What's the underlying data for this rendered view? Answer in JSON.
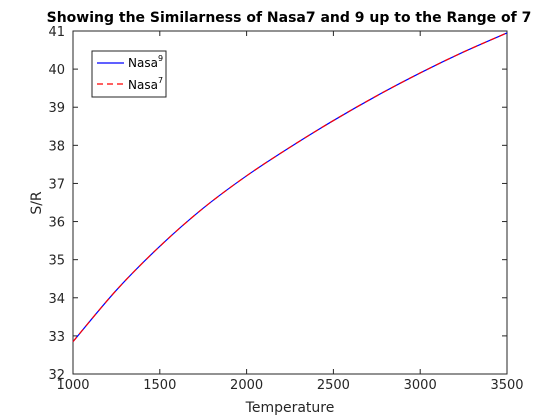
{
  "chart_data": {
    "type": "line",
    "title": "Showing the Similarness of Nasa7 and 9 up to the Range of 7",
    "xlabel": "Temperature",
    "ylabel": "S/R",
    "xlim": [
      1000,
      3500
    ],
    "ylim": [
      32,
      41
    ],
    "xticks": [
      1000,
      1500,
      2000,
      2500,
      3000,
      3500
    ],
    "yticks": [
      32,
      33,
      34,
      35,
      36,
      37,
      38,
      39,
      40,
      41
    ],
    "grid": false,
    "legend_position": "top-left",
    "series": [
      {
        "name": "Nasa",
        "name_superscript": "9",
        "color": "#0000ff",
        "line_style": "solid",
        "x": [
          1000,
          1250,
          1500,
          1750,
          2000,
          2250,
          2500,
          2750,
          3000,
          3250,
          3500
        ],
        "y": [
          32.85,
          34.2,
          35.35,
          36.35,
          37.2,
          37.95,
          38.65,
          39.3,
          39.9,
          40.45,
          40.95
        ]
      },
      {
        "name": "Nasa",
        "name_superscript": "7",
        "color": "#ff0000",
        "line_style": "dashed",
        "x": [
          1000,
          1250,
          1500,
          1750,
          2000,
          2250,
          2500,
          2750,
          3000,
          3250,
          3500
        ],
        "y": [
          32.85,
          34.2,
          35.35,
          36.35,
          37.2,
          37.95,
          38.65,
          39.3,
          39.9,
          40.45,
          40.95
        ]
      }
    ]
  }
}
